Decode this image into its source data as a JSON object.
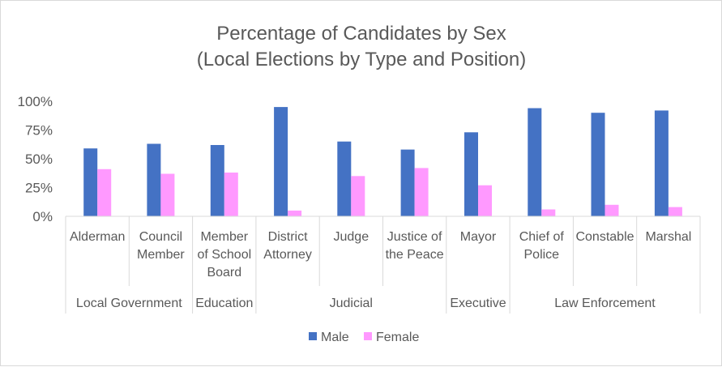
{
  "chart_data": {
    "type": "bar",
    "title": [
      "Percentage of Candidates by Sex",
      "(Local Elections by Type and Position)"
    ],
    "xlabel": "",
    "ylabel": "",
    "ylim": [
      0,
      100
    ],
    "y_ticks": [
      "0%",
      "25%",
      "50%",
      "75%",
      "100%"
    ],
    "y_tick_values": [
      0,
      25,
      50,
      75,
      100
    ],
    "categories": [
      [
        "Alderman"
      ],
      [
        "Council",
        "Member"
      ],
      [
        "Member",
        "of School",
        "Board"
      ],
      [
        "District",
        "Attorney"
      ],
      [
        "Judge"
      ],
      [
        "Justice of",
        "the Peace"
      ],
      [
        "Mayor"
      ],
      [
        "Chief of",
        "Police"
      ],
      [
        "Constable"
      ],
      [
        "Marshal"
      ]
    ],
    "groups": [
      {
        "label": "Local Government",
        "count": 2
      },
      {
        "label": "Education",
        "count": 1
      },
      {
        "label": "Judicial",
        "count": 3
      },
      {
        "label": "Executive",
        "count": 1
      },
      {
        "label": "Law Enforcement",
        "count": 3
      }
    ],
    "series": [
      {
        "name": "Male",
        "color": "#4472c4",
        "values": [
          59,
          63,
          62,
          95,
          65,
          58,
          73,
          94,
          90,
          92
        ]
      },
      {
        "name": "Female",
        "color": "#ff99ff",
        "values": [
          41,
          37,
          38,
          5,
          35,
          42,
          27,
          6,
          10,
          8
        ]
      }
    ],
    "grid": false,
    "legend_position": "bottom"
  }
}
